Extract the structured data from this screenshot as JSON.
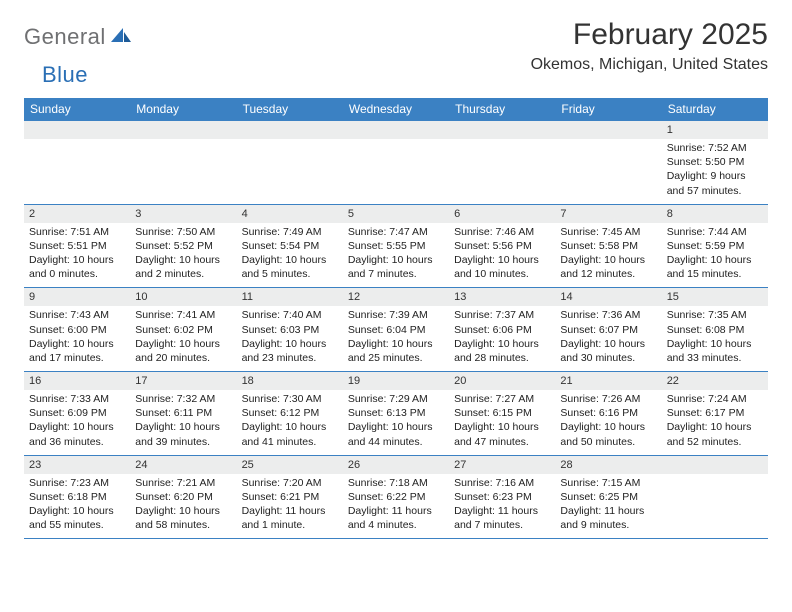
{
  "brand": {
    "part1": "General",
    "part2": "Blue"
  },
  "title": "February 2025",
  "location": "Okemos, Michigan, United States",
  "colors": {
    "header_bg": "#3b81c3",
    "header_text": "#ffffff",
    "row_border": "#3b81c3",
    "daynum_bg": "#eceded",
    "text": "#222222",
    "logo_gray": "#6f7072",
    "logo_blue": "#2a6fb5"
  },
  "weekdays": [
    "Sunday",
    "Monday",
    "Tuesday",
    "Wednesday",
    "Thursday",
    "Friday",
    "Saturday"
  ],
  "weeks": [
    [
      {
        "n": "",
        "sunrise": "",
        "sunset": "",
        "daylight": ""
      },
      {
        "n": "",
        "sunrise": "",
        "sunset": "",
        "daylight": ""
      },
      {
        "n": "",
        "sunrise": "",
        "sunset": "",
        "daylight": ""
      },
      {
        "n": "",
        "sunrise": "",
        "sunset": "",
        "daylight": ""
      },
      {
        "n": "",
        "sunrise": "",
        "sunset": "",
        "daylight": ""
      },
      {
        "n": "",
        "sunrise": "",
        "sunset": "",
        "daylight": ""
      },
      {
        "n": "1",
        "sunrise": "Sunrise: 7:52 AM",
        "sunset": "Sunset: 5:50 PM",
        "daylight": "Daylight: 9 hours and 57 minutes."
      }
    ],
    [
      {
        "n": "2",
        "sunrise": "Sunrise: 7:51 AM",
        "sunset": "Sunset: 5:51 PM",
        "daylight": "Daylight: 10 hours and 0 minutes."
      },
      {
        "n": "3",
        "sunrise": "Sunrise: 7:50 AM",
        "sunset": "Sunset: 5:52 PM",
        "daylight": "Daylight: 10 hours and 2 minutes."
      },
      {
        "n": "4",
        "sunrise": "Sunrise: 7:49 AM",
        "sunset": "Sunset: 5:54 PM",
        "daylight": "Daylight: 10 hours and 5 minutes."
      },
      {
        "n": "5",
        "sunrise": "Sunrise: 7:47 AM",
        "sunset": "Sunset: 5:55 PM",
        "daylight": "Daylight: 10 hours and 7 minutes."
      },
      {
        "n": "6",
        "sunrise": "Sunrise: 7:46 AM",
        "sunset": "Sunset: 5:56 PM",
        "daylight": "Daylight: 10 hours and 10 minutes."
      },
      {
        "n": "7",
        "sunrise": "Sunrise: 7:45 AM",
        "sunset": "Sunset: 5:58 PM",
        "daylight": "Daylight: 10 hours and 12 minutes."
      },
      {
        "n": "8",
        "sunrise": "Sunrise: 7:44 AM",
        "sunset": "Sunset: 5:59 PM",
        "daylight": "Daylight: 10 hours and 15 minutes."
      }
    ],
    [
      {
        "n": "9",
        "sunrise": "Sunrise: 7:43 AM",
        "sunset": "Sunset: 6:00 PM",
        "daylight": "Daylight: 10 hours and 17 minutes."
      },
      {
        "n": "10",
        "sunrise": "Sunrise: 7:41 AM",
        "sunset": "Sunset: 6:02 PM",
        "daylight": "Daylight: 10 hours and 20 minutes."
      },
      {
        "n": "11",
        "sunrise": "Sunrise: 7:40 AM",
        "sunset": "Sunset: 6:03 PM",
        "daylight": "Daylight: 10 hours and 23 minutes."
      },
      {
        "n": "12",
        "sunrise": "Sunrise: 7:39 AM",
        "sunset": "Sunset: 6:04 PM",
        "daylight": "Daylight: 10 hours and 25 minutes."
      },
      {
        "n": "13",
        "sunrise": "Sunrise: 7:37 AM",
        "sunset": "Sunset: 6:06 PM",
        "daylight": "Daylight: 10 hours and 28 minutes."
      },
      {
        "n": "14",
        "sunrise": "Sunrise: 7:36 AM",
        "sunset": "Sunset: 6:07 PM",
        "daylight": "Daylight: 10 hours and 30 minutes."
      },
      {
        "n": "15",
        "sunrise": "Sunrise: 7:35 AM",
        "sunset": "Sunset: 6:08 PM",
        "daylight": "Daylight: 10 hours and 33 minutes."
      }
    ],
    [
      {
        "n": "16",
        "sunrise": "Sunrise: 7:33 AM",
        "sunset": "Sunset: 6:09 PM",
        "daylight": "Daylight: 10 hours and 36 minutes."
      },
      {
        "n": "17",
        "sunrise": "Sunrise: 7:32 AM",
        "sunset": "Sunset: 6:11 PM",
        "daylight": "Daylight: 10 hours and 39 minutes."
      },
      {
        "n": "18",
        "sunrise": "Sunrise: 7:30 AM",
        "sunset": "Sunset: 6:12 PM",
        "daylight": "Daylight: 10 hours and 41 minutes."
      },
      {
        "n": "19",
        "sunrise": "Sunrise: 7:29 AM",
        "sunset": "Sunset: 6:13 PM",
        "daylight": "Daylight: 10 hours and 44 minutes."
      },
      {
        "n": "20",
        "sunrise": "Sunrise: 7:27 AM",
        "sunset": "Sunset: 6:15 PM",
        "daylight": "Daylight: 10 hours and 47 minutes."
      },
      {
        "n": "21",
        "sunrise": "Sunrise: 7:26 AM",
        "sunset": "Sunset: 6:16 PM",
        "daylight": "Daylight: 10 hours and 50 minutes."
      },
      {
        "n": "22",
        "sunrise": "Sunrise: 7:24 AM",
        "sunset": "Sunset: 6:17 PM",
        "daylight": "Daylight: 10 hours and 52 minutes."
      }
    ],
    [
      {
        "n": "23",
        "sunrise": "Sunrise: 7:23 AM",
        "sunset": "Sunset: 6:18 PM",
        "daylight": "Daylight: 10 hours and 55 minutes."
      },
      {
        "n": "24",
        "sunrise": "Sunrise: 7:21 AM",
        "sunset": "Sunset: 6:20 PM",
        "daylight": "Daylight: 10 hours and 58 minutes."
      },
      {
        "n": "25",
        "sunrise": "Sunrise: 7:20 AM",
        "sunset": "Sunset: 6:21 PM",
        "daylight": "Daylight: 11 hours and 1 minute."
      },
      {
        "n": "26",
        "sunrise": "Sunrise: 7:18 AM",
        "sunset": "Sunset: 6:22 PM",
        "daylight": "Daylight: 11 hours and 4 minutes."
      },
      {
        "n": "27",
        "sunrise": "Sunrise: 7:16 AM",
        "sunset": "Sunset: 6:23 PM",
        "daylight": "Daylight: 11 hours and 7 minutes."
      },
      {
        "n": "28",
        "sunrise": "Sunrise: 7:15 AM",
        "sunset": "Sunset: 6:25 PM",
        "daylight": "Daylight: 11 hours and 9 minutes."
      },
      {
        "n": "",
        "sunrise": "",
        "sunset": "",
        "daylight": ""
      }
    ]
  ]
}
